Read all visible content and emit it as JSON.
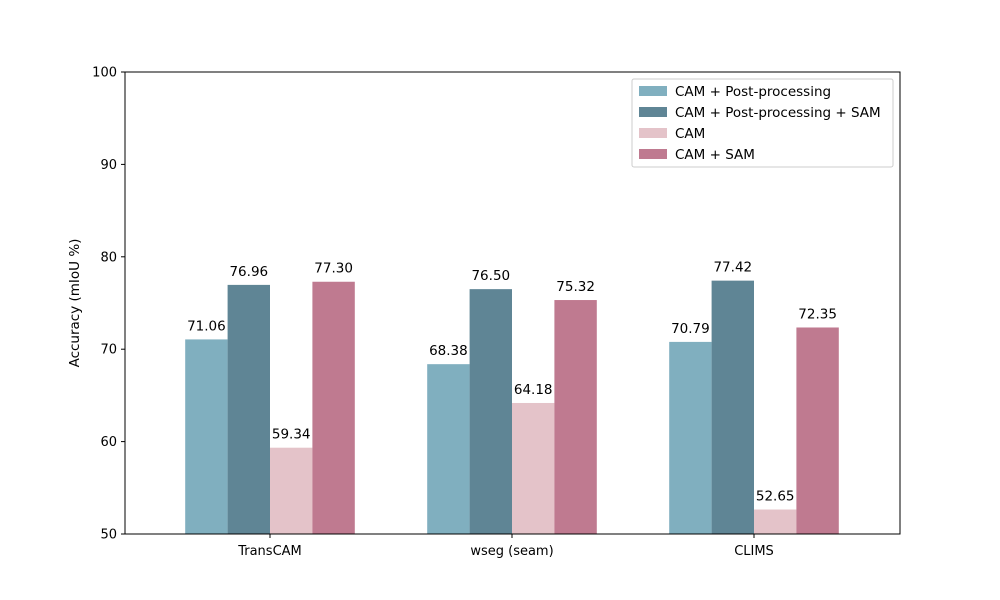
{
  "chart_data": {
    "type": "bar",
    "title": "",
    "xlabel": "",
    "ylabel": "Accuracy (mIoU %)",
    "ylim": [
      50,
      100
    ],
    "yticks": [
      50,
      60,
      70,
      80,
      90,
      100
    ],
    "grid": false,
    "legend_position": "top-right",
    "categories": [
      "TransCAM",
      "wseg (seam)",
      "CLIMS"
    ],
    "series": [
      {
        "name": "CAM + Post-processing",
        "color": "#80afbf",
        "values": [
          71.06,
          68.38,
          70.79
        ],
        "labels": [
          "71.06",
          "68.38",
          "70.79"
        ]
      },
      {
        "name": "CAM + Post-processing + SAM",
        "color": "#5f8595",
        "values": [
          76.96,
          76.5,
          77.42
        ],
        "labels": [
          "76.96",
          "76.50",
          "77.42"
        ]
      },
      {
        "name": "CAM",
        "color": "#e4c3c9",
        "values": [
          59.34,
          64.18,
          52.65
        ],
        "labels": [
          "59.34",
          "64.18",
          "52.65"
        ]
      },
      {
        "name": "CAM + SAM",
        "color": "#bf7a90",
        "values": [
          77.3,
          75.32,
          72.35
        ],
        "labels": [
          "77.30",
          "75.32",
          "72.35"
        ]
      }
    ]
  }
}
